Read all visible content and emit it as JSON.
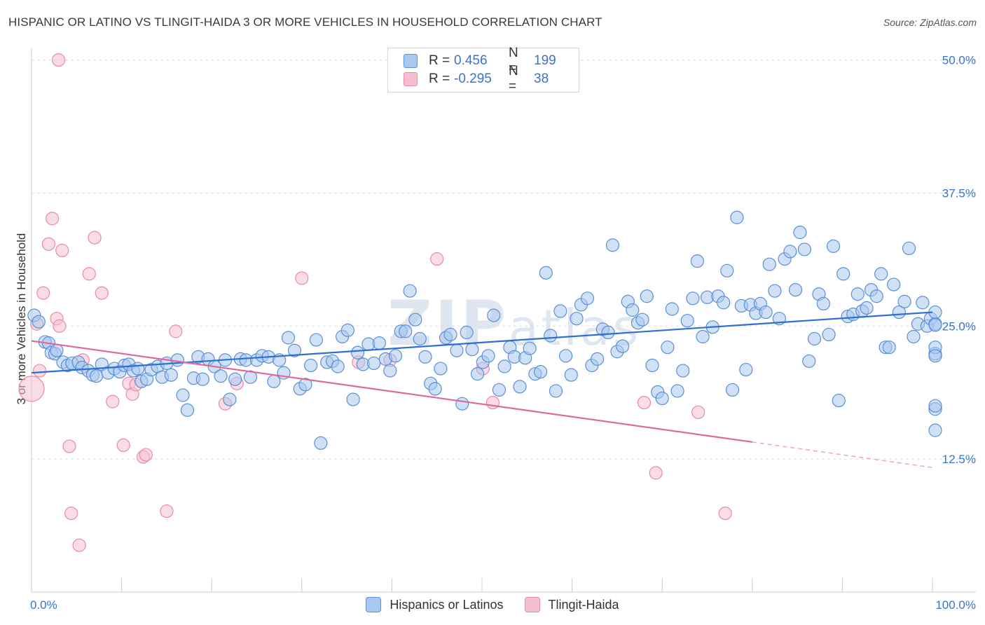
{
  "title": "HISPANIC OR LATINO VS TLINGIT-HAIDA 3 OR MORE VEHICLES IN HOUSEHOLD CORRELATION CHART",
  "source": "Source: ZipAtlas.com",
  "watermark": "ZIPatlas",
  "legend": {
    "row1": {
      "r_label": "R =",
      "r_value": "0.456",
      "n_label": "N =",
      "n_value": "199"
    },
    "row2": {
      "r_label": "R =",
      "r_value": "-0.295",
      "n_label": "N =",
      "n_value": "38"
    }
  },
  "bottom_legend": [
    "Hispanics or Latinos",
    "Tlingit-Haida"
  ],
  "colors": {
    "blue_fill": "#a9c8ef",
    "blue_stroke": "#5b8fd6",
    "blue_line": "#2f6fd0",
    "pink_fill": "#f5bfd0",
    "pink_stroke": "#e88aa8",
    "pink_line": "#e0679a",
    "grid": "#dadde3",
    "tick_label": "#3a73c7"
  },
  "chart_data": {
    "type": "scatter",
    "title": "HISPANIC OR LATINO VS TLINGIT-HAIDA 3 OR MORE VEHICLES IN HOUSEHOLD CORRELATION CHART",
    "xlabel": "",
    "ylabel": "3 or more Vehicles in Household",
    "x_ticks": [
      "0.0%",
      "100.0%"
    ],
    "y_ticks": [
      "12.5%",
      "25.0%",
      "37.5%",
      "50.0%"
    ],
    "xlim": [
      0,
      100
    ],
    "ylim": [
      0,
      50.5
    ],
    "grid": true,
    "series": [
      {
        "name": "Hispanics or Latinos",
        "trend": [
          [
            0,
            20.6
          ],
          [
            100,
            26.3
          ]
        ],
        "points": [
          [
            0.3,
            26.0
          ],
          [
            0.8,
            25.4
          ],
          [
            1.5,
            23.5
          ],
          [
            1.9,
            23.4
          ],
          [
            2.2,
            22.5
          ],
          [
            2.6,
            22.4
          ],
          [
            2.8,
            22.7
          ],
          [
            3.5,
            21.6
          ],
          [
            4.0,
            21.3
          ],
          [
            4.5,
            21.5
          ],
          [
            5.2,
            21.6
          ],
          [
            5.6,
            21.1
          ],
          [
            6.3,
            20.8
          ],
          [
            6.8,
            20.4
          ],
          [
            7.2,
            20.3
          ],
          [
            7.8,
            21.4
          ],
          [
            8.5,
            20.6
          ],
          [
            9.2,
            21.0
          ],
          [
            9.8,
            20.7
          ],
          [
            10.3,
            21.3
          ],
          [
            10.8,
            21.4
          ],
          [
            11.3,
            20.8
          ],
          [
            11.8,
            21.0
          ],
          [
            12.2,
            19.8
          ],
          [
            12.8,
            20.0
          ],
          [
            13.3,
            20.9
          ],
          [
            14.0,
            21.2
          ],
          [
            14.5,
            20.2
          ],
          [
            15.0,
            21.5
          ],
          [
            15.5,
            20.4
          ],
          [
            16.2,
            21.8
          ],
          [
            16.8,
            18.5
          ],
          [
            17.3,
            17.1
          ],
          [
            18.0,
            20.1
          ],
          [
            18.5,
            22.1
          ],
          [
            19.0,
            20.0
          ],
          [
            19.6,
            21.9
          ],
          [
            20.3,
            21.2
          ],
          [
            21.0,
            20.3
          ],
          [
            21.5,
            21.8
          ],
          [
            22.0,
            18.1
          ],
          [
            22.6,
            20.0
          ],
          [
            23.2,
            21.9
          ],
          [
            23.8,
            21.8
          ],
          [
            24.3,
            20.2
          ],
          [
            25.0,
            21.8
          ],
          [
            25.6,
            22.2
          ],
          [
            26.3,
            22.1
          ],
          [
            26.9,
            19.8
          ],
          [
            27.5,
            21.8
          ],
          [
            28.0,
            20.6
          ],
          [
            28.5,
            23.9
          ],
          [
            29.2,
            22.7
          ],
          [
            29.8,
            19.1
          ],
          [
            30.4,
            19.5
          ],
          [
            31.0,
            21.3
          ],
          [
            31.6,
            23.7
          ],
          [
            32.1,
            14.0
          ],
          [
            32.8,
            21.6
          ],
          [
            33.4,
            21.7
          ],
          [
            34.0,
            21.2
          ],
          [
            34.5,
            24.0
          ],
          [
            35.1,
            24.6
          ],
          [
            35.7,
            18.1
          ],
          [
            36.2,
            22.5
          ],
          [
            36.8,
            21.4
          ],
          [
            37.4,
            23.3
          ],
          [
            38.0,
            21.5
          ],
          [
            38.6,
            23.4
          ],
          [
            39.3,
            21.9
          ],
          [
            39.8,
            20.8
          ],
          [
            40.4,
            22.2
          ],
          [
            41.0,
            24.5
          ],
          [
            41.5,
            24.5
          ],
          [
            42.0,
            28.3
          ],
          [
            42.6,
            25.6
          ],
          [
            43.1,
            23.8
          ],
          [
            43.7,
            22.1
          ],
          [
            44.3,
            19.6
          ],
          [
            44.8,
            19.1
          ],
          [
            45.4,
            21.0
          ],
          [
            46.0,
            23.9
          ],
          [
            46.5,
            24.2
          ],
          [
            47.2,
            22.7
          ],
          [
            47.8,
            17.7
          ],
          [
            48.3,
            24.4
          ],
          [
            48.9,
            22.8
          ],
          [
            49.5,
            20.5
          ],
          [
            50.1,
            21.6
          ],
          [
            50.7,
            22.2
          ],
          [
            51.3,
            26.0
          ],
          [
            51.9,
            19.0
          ],
          [
            52.5,
            21.2
          ],
          [
            53.1,
            23.0
          ],
          [
            53.6,
            22.1
          ],
          [
            54.2,
            19.3
          ],
          [
            54.8,
            22.0
          ],
          [
            55.3,
            22.9
          ],
          [
            55.9,
            20.5
          ],
          [
            56.5,
            20.7
          ],
          [
            57.1,
            30.0
          ],
          [
            57.6,
            24.1
          ],
          [
            58.2,
            18.9
          ],
          [
            58.7,
            26.4
          ],
          [
            59.3,
            22.2
          ],
          [
            59.9,
            20.4
          ],
          [
            60.5,
            25.7
          ],
          [
            61.0,
            27.0
          ],
          [
            61.7,
            27.6
          ],
          [
            62.2,
            21.3
          ],
          [
            62.8,
            21.9
          ],
          [
            63.4,
            24.7
          ],
          [
            64.0,
            24.4
          ],
          [
            64.5,
            32.6
          ],
          [
            65.0,
            22.6
          ],
          [
            65.6,
            23.1
          ],
          [
            66.2,
            27.3
          ],
          [
            66.7,
            26.5
          ],
          [
            67.3,
            25.3
          ],
          [
            67.8,
            25.6
          ],
          [
            68.3,
            27.8
          ],
          [
            68.9,
            21.3
          ],
          [
            69.5,
            18.8
          ],
          [
            70.0,
            18.2
          ],
          [
            70.6,
            23.0
          ],
          [
            71.1,
            26.6
          ],
          [
            71.7,
            18.9
          ],
          [
            72.3,
            20.8
          ],
          [
            72.8,
            25.5
          ],
          [
            73.4,
            27.6
          ],
          [
            73.9,
            31.1
          ],
          [
            74.5,
            24.0
          ],
          [
            75.0,
            27.7
          ],
          [
            75.6,
            24.9
          ],
          [
            76.2,
            27.8
          ],
          [
            76.8,
            27.2
          ],
          [
            77.2,
            30.2
          ],
          [
            77.8,
            19.0
          ],
          [
            78.3,
            35.2
          ],
          [
            78.8,
            26.9
          ],
          [
            79.3,
            20.9
          ],
          [
            79.8,
            27.0
          ],
          [
            80.4,
            26.2
          ],
          [
            80.9,
            27.1
          ],
          [
            81.5,
            26.3
          ],
          [
            81.9,
            30.8
          ],
          [
            82.5,
            28.3
          ],
          [
            83.0,
            25.7
          ],
          [
            83.6,
            31.3
          ],
          [
            84.2,
            32.0
          ],
          [
            84.8,
            28.4
          ],
          [
            85.3,
            33.8
          ],
          [
            85.8,
            32.2
          ],
          [
            86.3,
            21.7
          ],
          [
            86.9,
            23.8
          ],
          [
            87.4,
            28.0
          ],
          [
            87.9,
            27.1
          ],
          [
            88.5,
            24.2
          ],
          [
            89.0,
            32.5
          ],
          [
            89.6,
            18.0
          ],
          [
            90.1,
            29.9
          ],
          [
            90.6,
            25.9
          ],
          [
            91.2,
            26.1
          ],
          [
            91.7,
            28.0
          ],
          [
            92.2,
            26.4
          ],
          [
            92.7,
            26.7
          ],
          [
            93.2,
            28.4
          ],
          [
            93.8,
            27.8
          ],
          [
            94.3,
            29.9
          ],
          [
            94.8,
            23.0
          ],
          [
            95.2,
            23.0
          ],
          [
            95.7,
            28.9
          ],
          [
            96.3,
            26.3
          ],
          [
            96.9,
            27.3
          ],
          [
            97.4,
            32.3
          ],
          [
            97.9,
            24.0
          ],
          [
            98.4,
            25.2
          ],
          [
            98.9,
            27.2
          ],
          [
            99.4,
            25.0
          ],
          [
            99.8,
            25.7
          ],
          [
            100.3,
            22.4
          ],
          [
            100.9,
            23.0
          ],
          [
            101.5,
            25.2
          ],
          [
            102.0,
            26.3
          ],
          [
            102.6,
            22.2
          ],
          [
            103.1,
            25.1
          ],
          [
            103.6,
            17.2
          ],
          [
            104.2,
            15.2
          ],
          [
            104.8,
            17.5
          ]
        ]
      },
      {
        "name": "Tlingit-Haida",
        "trend": [
          [
            0,
            23.6
          ],
          [
            80,
            14.1
          ]
        ],
        "trend_dashed": [
          [
            80,
            14.1
          ],
          [
            100,
            11.7
          ]
        ],
        "points": [
          [
            0.1,
            19.1
          ],
          [
            0.6,
            25.2
          ],
          [
            0.9,
            20.8
          ],
          [
            1.3,
            28.1
          ],
          [
            1.9,
            32.7
          ],
          [
            2.3,
            35.1
          ],
          [
            2.8,
            25.7
          ],
          [
            3.1,
            25.0
          ],
          [
            3.4,
            32.1
          ],
          [
            4.2,
            13.7
          ],
          [
            4.4,
            7.4
          ],
          [
            5.3,
            4.4
          ],
          [
            5.7,
            21.8
          ],
          [
            6.4,
            29.9
          ],
          [
            7.0,
            33.3
          ],
          [
            7.8,
            28.1
          ],
          [
            9.0,
            17.9
          ],
          [
            10.2,
            13.8
          ],
          [
            10.8,
            19.6
          ],
          [
            11.2,
            18.6
          ],
          [
            11.6,
            19.5
          ],
          [
            12.4,
            12.7
          ],
          [
            12.7,
            12.9
          ],
          [
            15.0,
            7.6
          ],
          [
            16.0,
            24.5
          ],
          [
            21.5,
            17.7
          ],
          [
            22.8,
            19.6
          ],
          [
            30.0,
            29.5
          ],
          [
            36.3,
            21.6
          ],
          [
            45.0,
            31.3
          ],
          [
            50.1,
            21.0
          ],
          [
            51.2,
            17.8
          ],
          [
            68.0,
            17.8
          ],
          [
            69.3,
            11.2
          ],
          [
            74.0,
            16.9
          ],
          [
            77.0,
            7.4
          ],
          [
            3.0,
            50.0
          ],
          [
            39.8,
            21.8
          ]
        ]
      }
    ]
  }
}
